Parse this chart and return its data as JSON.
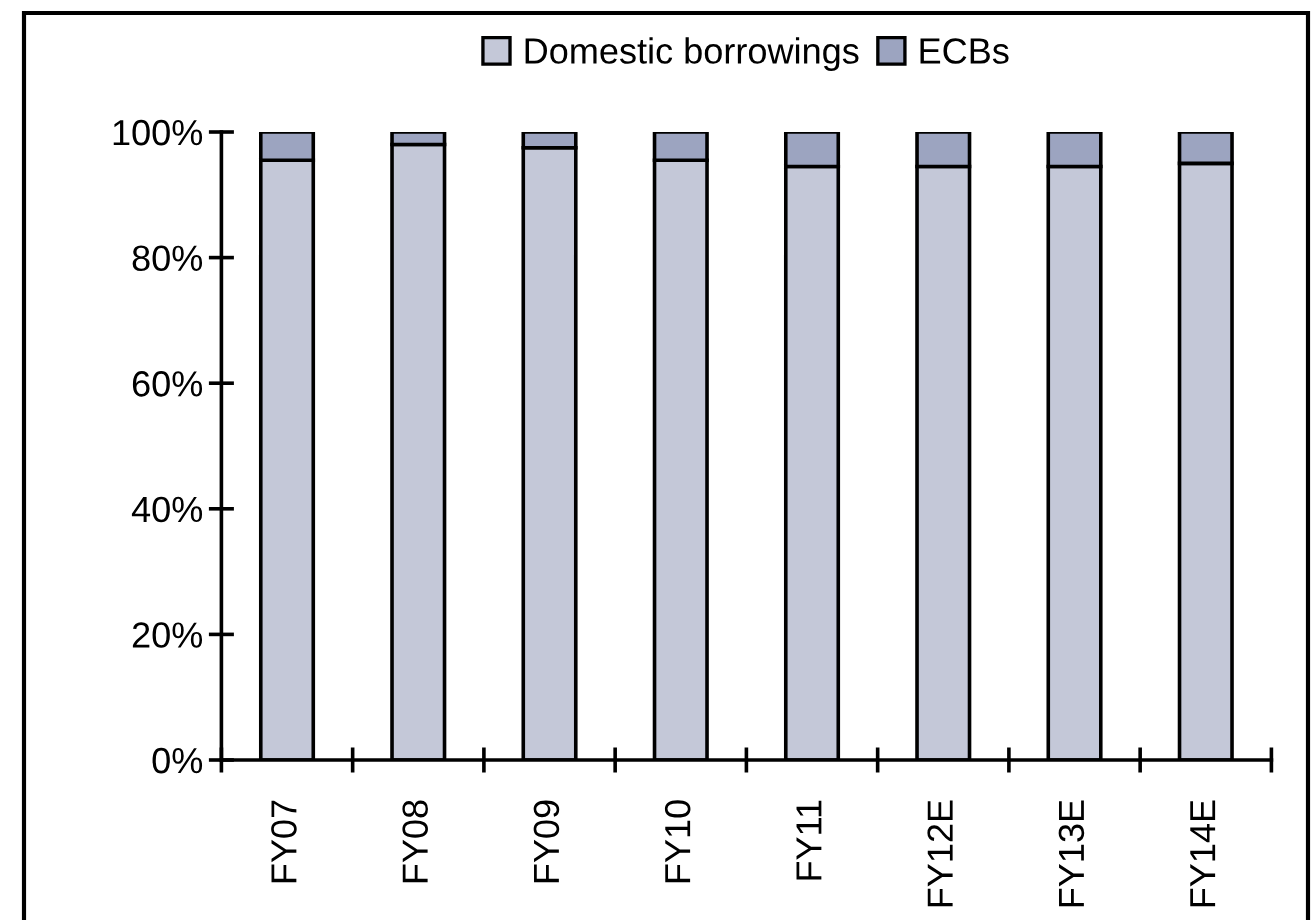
{
  "chart_data": {
    "type": "bar",
    "stacked": true,
    "categories": [
      "FY07",
      "FY08",
      "FY09",
      "FY10",
      "FY11",
      "FY12E",
      "FY13E",
      "FY14E"
    ],
    "series": [
      {
        "name": "Domestic borrowings",
        "color": "#c4c8d8",
        "values": [
          95.5,
          98,
          97.5,
          95.5,
          94.5,
          94.5,
          94.5,
          95
        ]
      },
      {
        "name": "ECBs",
        "color": "#9ca4c0",
        "values": [
          4.5,
          2,
          2.5,
          4.5,
          5.5,
          5.5,
          5.5,
          5
        ]
      }
    ],
    "ylim": [
      0,
      100
    ],
    "yticks": [
      {
        "value": 0,
        "label": "0%"
      },
      {
        "value": 20,
        "label": "20%"
      },
      {
        "value": 40,
        "label": "40%"
      },
      {
        "value": 60,
        "label": "60%"
      },
      {
        "value": 80,
        "label": "80%"
      },
      {
        "value": 100,
        "label": "100%"
      }
    ],
    "legend": "top"
  }
}
